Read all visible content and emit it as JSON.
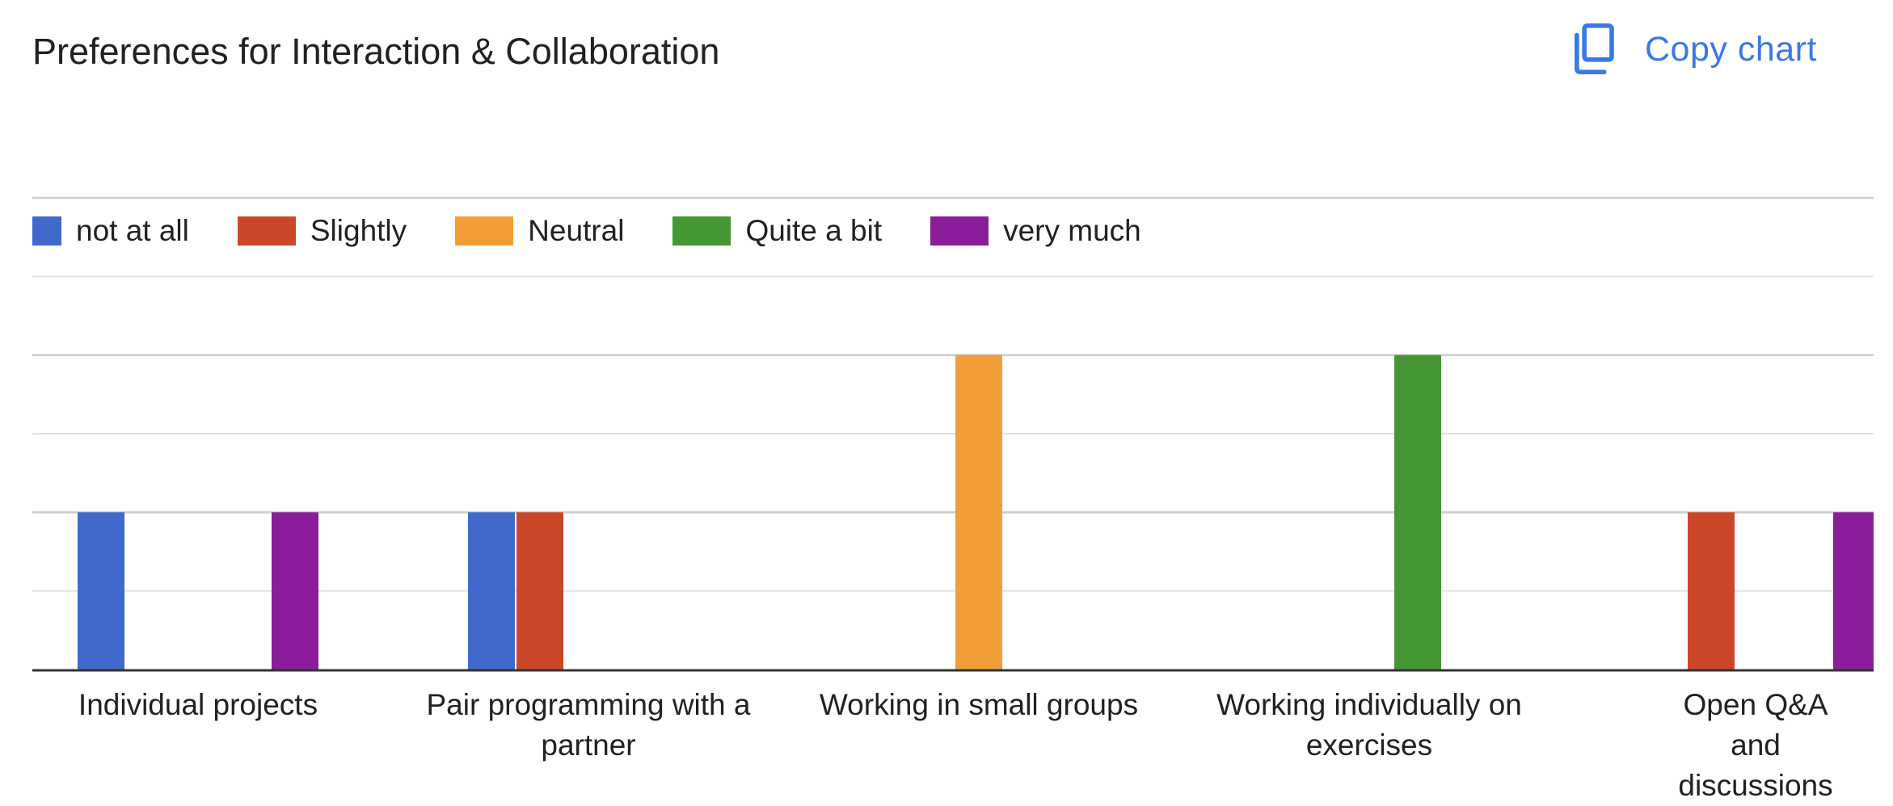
{
  "header": {
    "title": "Preferences for Interaction & Collaboration",
    "copy_label": "Copy chart",
    "copy_icon": "copy-icon"
  },
  "colors": {
    "accent": "#3b78e7",
    "gridline": "#e0e0e0",
    "gridline_major": "#cccccc",
    "axis": "#333333"
  },
  "chart_data": {
    "type": "bar",
    "title": "Preferences for Interaction & Collaboration",
    "categories": [
      "Individual projects",
      "Pair programming with a partner",
      "Working in small groups",
      "Working individually on exercises",
      "Open Q&A and discussions"
    ],
    "series": [
      {
        "name": "not at all",
        "color": "#4169cc",
        "values": [
          1,
          1,
          0,
          0,
          0
        ]
      },
      {
        "name": "Slightly",
        "color": "#cc4729",
        "values": [
          0,
          1,
          0,
          0,
          1
        ]
      },
      {
        "name": "Neutral",
        "color": "#f29e38",
        "values": [
          0,
          0,
          2,
          0,
          0
        ]
      },
      {
        "name": "Quite a bit",
        "color": "#449732",
        "values": [
          0,
          0,
          0,
          2,
          0
        ]
      },
      {
        "name": "very much",
        "color": "#8b1d9a",
        "values": [
          1,
          0,
          0,
          0,
          1
        ]
      }
    ],
    "ylim": [
      0,
      3
    ],
    "grid": true,
    "legend": "top-left"
  }
}
